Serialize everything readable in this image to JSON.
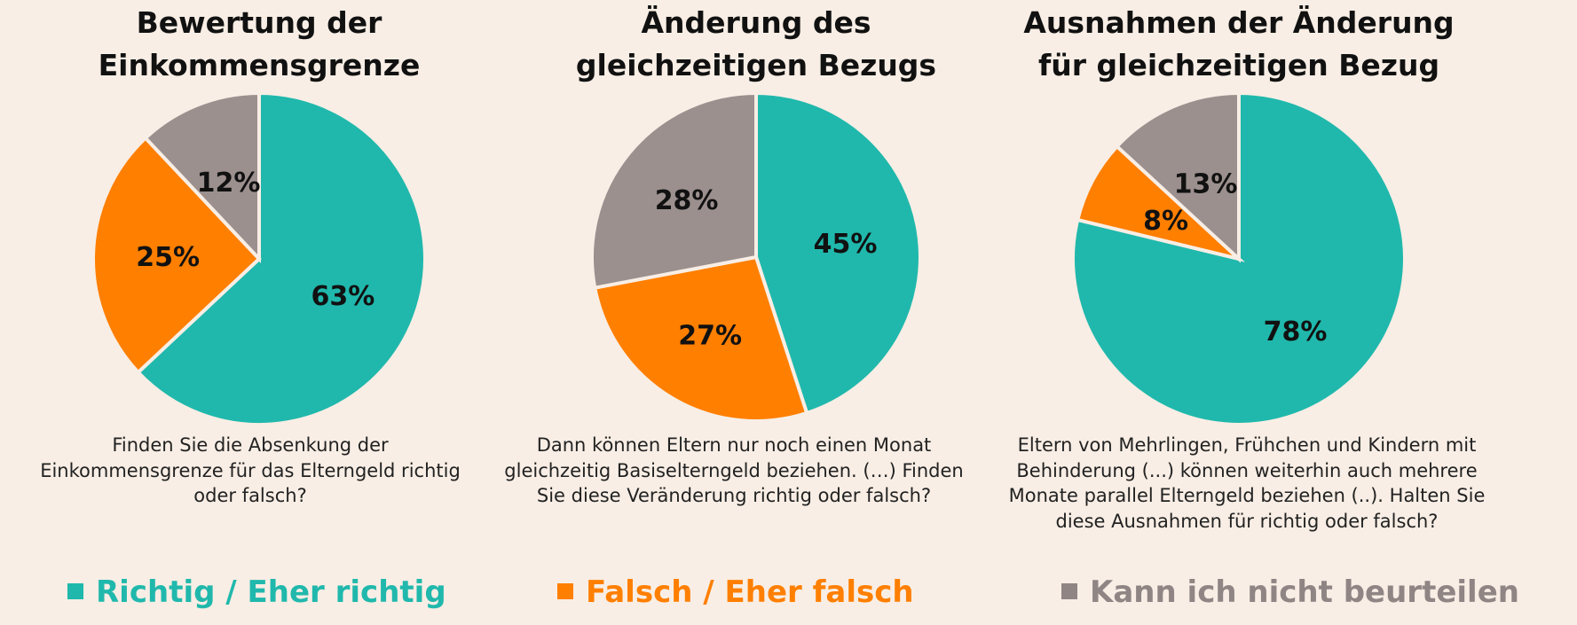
{
  "chart_data": [
    {
      "type": "pie",
      "title": [
        "Bewertung der",
        "Einkommensgrenze"
      ],
      "description": "Finden Sie die Absenkung der Einkommensgrenze für das Elterngeld richtig oder falsch?",
      "slices": [
        {
          "category": "Richtig / Eher richtig",
          "value": 63,
          "label": "63%"
        },
        {
          "category": "Falsch / Eher falsch",
          "value": 25,
          "label": "25%"
        },
        {
          "category": "Kann ich nicht beurteilen",
          "value": 12,
          "label": "12%"
        }
      ]
    },
    {
      "type": "pie",
      "title": [
        "Änderung des",
        "gleichzeitigen Bezugs"
      ],
      "description": "Dann können Eltern nur noch einen Monat gleichzeitig Basiselterngeld beziehen. (…) Finden Sie diese Veränderung richtig oder falsch?",
      "slices": [
        {
          "category": "Richtig / Eher richtig",
          "value": 45,
          "label": "45%"
        },
        {
          "category": "Falsch / Eher falsch",
          "value": 27,
          "label": "27%"
        },
        {
          "category": "Kann ich nicht beurteilen",
          "value": 28,
          "label": "28%"
        }
      ]
    },
    {
      "type": "pie",
      "title": [
        "Ausnahmen der Änderung",
        "für gleichzeitigen Bezug"
      ],
      "description": "Eltern von Mehrlingen, Frühchen und Kindern mit Behinderung (...) können weiterhin auch mehrere Monate parallel Elterngeld beziehen (..). Halten Sie diese Ausnahmen für richtig oder falsch?",
      "slices": [
        {
          "category": "Richtig / Eher richtig",
          "value": 78,
          "label": "78%"
        },
        {
          "category": "Falsch / Eher falsch",
          "value": 8,
          "label": "8%"
        },
        {
          "category": "Kann ich nicht beurteilen",
          "value": 13,
          "label": "13%"
        }
      ]
    }
  ],
  "legend": [
    {
      "label": "Richtig / Eher richtig",
      "color": "#20b8ac"
    },
    {
      "label": "Falsch / Eher falsch",
      "color": "#ff7f00"
    },
    {
      "label": "Kann ich nicht beurteilen",
      "color": "#8f8584"
    }
  ],
  "slice_colors": [
    "#20b8ac",
    "#ff7f00",
    "#9b908e"
  ],
  "background": "#f8eee5"
}
